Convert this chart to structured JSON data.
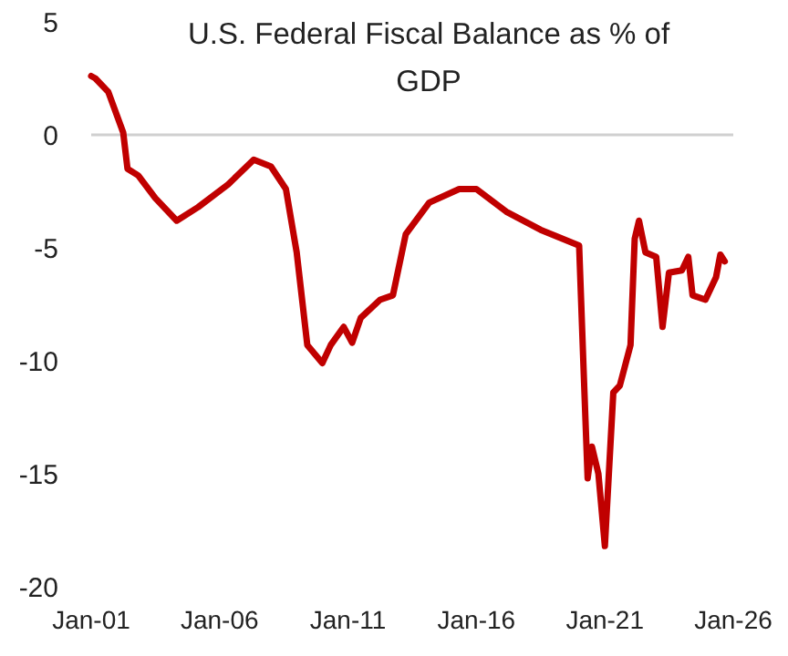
{
  "chart_data": {
    "type": "line",
    "title": "U.S. Federal Fiscal Balance as % of GDP",
    "x": [
      "2001-01",
      "2001-03",
      "2001-09",
      "2002-04",
      "2002-06",
      "2002-11",
      "2003-07",
      "2004-05",
      "2005-03",
      "2006-05",
      "2007-05",
      "2008-01",
      "2008-08",
      "2009-01",
      "2009-06",
      "2010-01",
      "2010-05",
      "2010-11",
      "2011-03",
      "2011-07",
      "2012-04",
      "2012-10",
      "2013-04",
      "2014-03",
      "2015-05",
      "2016-01",
      "2017-03",
      "2018-07",
      "2020-01",
      "2020-03",
      "2020-05",
      "2020-07",
      "2020-10",
      "2021-01",
      "2021-05",
      "2021-08",
      "2022-01",
      "2022-03",
      "2022-05",
      "2022-08",
      "2023-01",
      "2023-04",
      "2023-07",
      "2024-01",
      "2024-04",
      "2024-06",
      "2024-12",
      "2025-05",
      "2025-07",
      "2025-09"
    ],
    "series": [
      {
        "color": "#c00000",
        "values": [
          2.6,
          2.5,
          1.9,
          0.1,
          -1.5,
          -1.8,
          -2.8,
          -3.8,
          -3.2,
          -2.2,
          -1.1,
          -1.4,
          -2.4,
          -5.2,
          -9.3,
          -10.1,
          -9.3,
          -8.5,
          -9.2,
          -8.1,
          -7.3,
          -7.1,
          -4.4,
          -3.0,
          -2.4,
          -2.4,
          -3.4,
          -4.2,
          -4.9,
          -10.1,
          -15.2,
          -13.8,
          -15.0,
          -18.2,
          -11.4,
          -11.1,
          -9.3,
          -4.6,
          -3.8,
          -5.2,
          -5.4,
          -8.5,
          -6.1,
          -6.0,
          -5.4,
          -7.1,
          -7.3,
          -6.3,
          -5.3,
          -5.6
        ]
      }
    ],
    "xlim": [
      "2001-01",
      "2026-01"
    ],
    "xticks": [
      {
        "value": "2001-01",
        "label": "Jan-01"
      },
      {
        "value": "2006-01",
        "label": "Jan-06"
      },
      {
        "value": "2011-01",
        "label": "Jan-11"
      },
      {
        "value": "2016-01",
        "label": "Jan-16"
      },
      {
        "value": "2021-01",
        "label": "Jan-21"
      },
      {
        "value": "2026-01",
        "label": "Jan-26"
      }
    ],
    "ylim": [
      -20,
      5
    ],
    "yticks": [
      -20,
      -15,
      -10,
      -5,
      0,
      5
    ]
  }
}
